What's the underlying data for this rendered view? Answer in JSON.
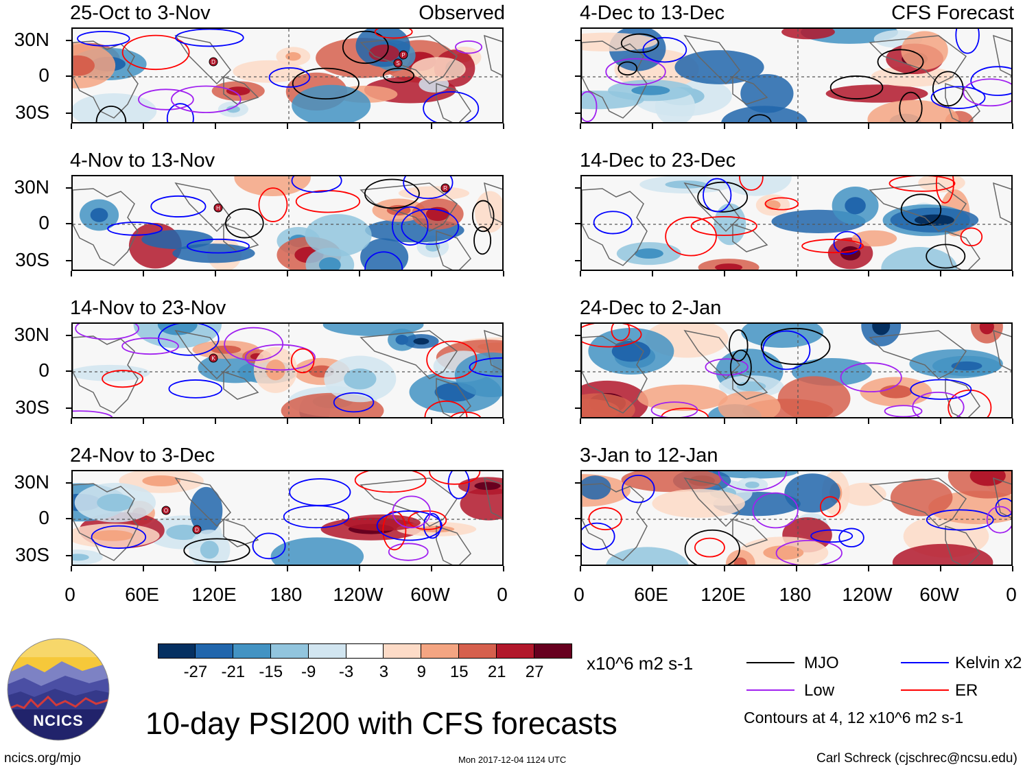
{
  "left_header": "Observed",
  "right_header": "CFS Forecast",
  "panels_left": [
    {
      "title": "25-Oct to 3-Nov"
    },
    {
      "title": "4-Nov to 13-Nov"
    },
    {
      "title": "14-Nov to 23-Nov"
    },
    {
      "title": "24-Nov to 3-Dec"
    }
  ],
  "panels_right": [
    {
      "title": "4-Dec to 13-Dec"
    },
    {
      "title": "14-Dec to 23-Dec"
    },
    {
      "title": "24-Dec to 2-Jan"
    },
    {
      "title": "3-Jan to 12-Jan"
    }
  ],
  "y_labels": [
    "30N",
    "0",
    "30S"
  ],
  "x_labels": [
    "0",
    "60E",
    "120E",
    "180",
    "120W",
    "60W",
    "0"
  ],
  "colorbar": {
    "labels": [
      "-27",
      "-21",
      "-15",
      "-9",
      "-3",
      "3",
      "9",
      "15",
      "21",
      "27"
    ],
    "colors": [
      "#053061",
      "#2166ac",
      "#4393c3",
      "#92c5de",
      "#d1e5f0",
      "#ffffff",
      "#fddbc7",
      "#f4a582",
      "#d6604d",
      "#b2182b",
      "#67001f"
    ],
    "units": "x10^6 m2 s-1"
  },
  "legend": {
    "mjo": "MJO",
    "kelvin": "Kelvin x2",
    "low": "Low",
    "er": "ER",
    "colors": {
      "mjo": "#000000",
      "kelvin": "#0000ff",
      "low": "#a020f0",
      "er": "#ff0000"
    },
    "note": "Contours at 4, 12 x10^6 m2 s-1"
  },
  "title": "10-day PSI200 with CFS forecasts",
  "logo_text": "NCICS",
  "footer": {
    "left": "ncics.org/mjo",
    "center": "Mon 2017-12-04 1124 UTC",
    "right": "Carl Schreck (cjschrec@ncsu.edu)"
  },
  "storm_markers": [
    {
      "panel": 0,
      "label": "D"
    },
    {
      "panel": 0,
      "label": "P"
    },
    {
      "panel": 0,
      "label": "S"
    },
    {
      "panel": 1,
      "label": "H"
    },
    {
      "panel": 1,
      "label": "R"
    },
    {
      "panel": 2,
      "label": "K"
    },
    {
      "panel": 3,
      "label": "O"
    },
    {
      "panel": 3,
      "label": "D"
    }
  ]
}
